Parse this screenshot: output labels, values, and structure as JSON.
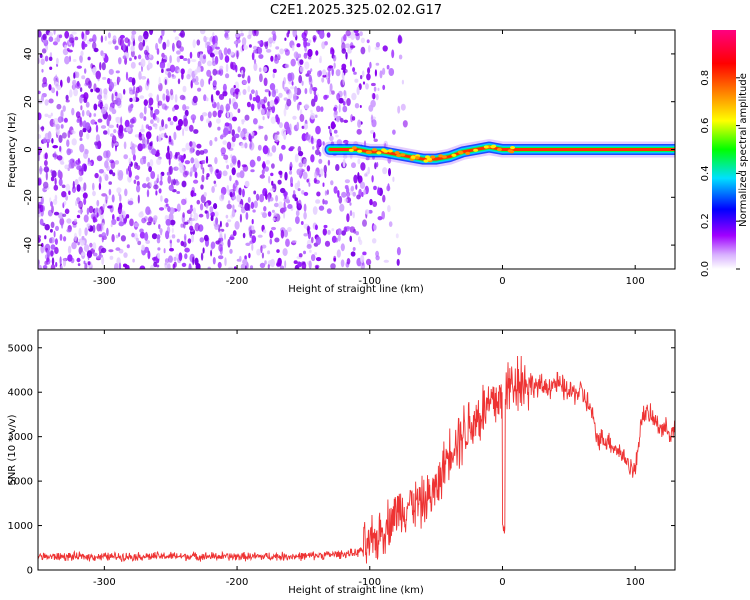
{
  "title": "C2E1.2025.325.02.02.G17",
  "chart_data": [
    {
      "type": "heatmap",
      "title": "C2E1.2025.325.02.02.G17",
      "xlabel": "Height of straight line (km)",
      "ylabel": "Frequency (Hz)",
      "xlim": [
        -350,
        130
      ],
      "ylim": [
        -50,
        50
      ],
      "x_ticks": [
        -300,
        -200,
        -100,
        0,
        100
      ],
      "x_tick_labels": [
        "-300",
        "-200",
        "-100",
        "0",
        "100"
      ],
      "y_ticks": [
        -40,
        -20,
        0,
        20,
        40
      ],
      "y_tick_labels": [
        "-40",
        "-20",
        "0",
        "20",
        "40"
      ],
      "noise_region_x": [
        -350,
        -80
      ],
      "signal_ridge": {
        "x": [
          -130,
          -120,
          -110,
          -100,
          -90,
          -80,
          -70,
          -60,
          -50,
          -40,
          -30,
          -20,
          -10,
          0,
          10,
          130
        ],
        "freq": [
          0,
          0,
          0,
          -1,
          -1,
          -2,
          -3,
          -4,
          -4,
          -3,
          -1,
          0,
          1,
          0,
          0,
          0
        ]
      },
      "colorbar": {
        "label": "Normalized spectral amplitude",
        "range": [
          0,
          1
        ],
        "tick_labels": [
          "0.0",
          "0.2",
          "0.4",
          "0.6",
          "0.8"
        ],
        "colors": [
          "#ffffff",
          "#a000ff",
          "#0000ff",
          "#00e0ff",
          "#00ff00",
          "#ffff00",
          "#ff8000",
          "#ff0000",
          "#ff0080"
        ]
      }
    },
    {
      "type": "line",
      "xlabel": "Height of straight line (km)",
      "ylabel": "SNR (10 * v/v)",
      "xlim": [
        -350,
        130
      ],
      "ylim": [
        0,
        5400
      ],
      "x_ticks": [
        -300,
        -200,
        -100,
        0,
        100
      ],
      "x_tick_labels": [
        "-300",
        "-200",
        "-100",
        "0",
        "100"
      ],
      "y_ticks": [
        0,
        1000,
        2000,
        3000,
        4000,
        5000
      ],
      "y_tick_labels": [
        "0",
        "1000",
        "2000",
        "3000",
        "4000",
        "5000"
      ],
      "series": [
        {
          "name": "SNR",
          "color": "#ee3333",
          "x": [
            -350,
            -300,
            -250,
            -200,
            -150,
            -110,
            -100,
            -90,
            -80,
            -70,
            -60,
            -50,
            -40,
            -30,
            -20,
            -10,
            0,
            10,
            20,
            30,
            40,
            50,
            60,
            68,
            70,
            80,
            90,
            100,
            105,
            110,
            120,
            130
          ],
          "y": [
            300,
            300,
            310,
            300,
            310,
            380,
            550,
            900,
            1300,
            1500,
            1500,
            1800,
            2700,
            3100,
            3400,
            3700,
            3900,
            4300,
            4200,
            4100,
            4200,
            4000,
            4000,
            3500,
            3000,
            2900,
            2600,
            2200,
            3500,
            3500,
            3200,
            3100
          ]
        }
      ]
    }
  ]
}
